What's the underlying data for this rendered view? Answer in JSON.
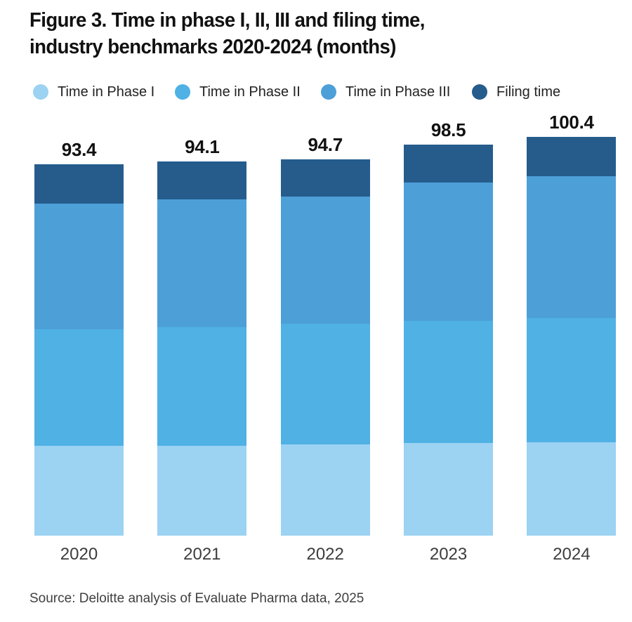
{
  "title": {
    "line1": "Figure 3. Time in phase I, II, III and filing time,",
    "line2": "industry benchmarks 2020-2024 (months)"
  },
  "legend": [
    {
      "label": "Time in Phase I",
      "color": "#9CD2F2"
    },
    {
      "label": "Time in Phase II",
      "color": "#4FB1E4"
    },
    {
      "label": "Time in Phase III",
      "color": "#4D9FD8"
    },
    {
      "label": "Filing time",
      "color": "#255C8C"
    }
  ],
  "source": "Source: Deloitte analysis of Evaluate Pharma data, 2025",
  "colors": {
    "phase1": "#9CD2F2",
    "phase2": "#4FB1E4",
    "phase3": "#4D9FD8",
    "filing": "#255C8C",
    "title_text": "#111111",
    "axis_text": "#3d3d3d",
    "background": "#ffffff"
  },
  "chart_data": {
    "type": "bar",
    "stacked": true,
    "title": "Figure 3. Time in phase I, II, III and filing time, industry benchmarks 2020-2024 (months)",
    "ylabel": "months",
    "grid": false,
    "legend_position": "top",
    "categories": [
      "2020",
      "2021",
      "2022",
      "2023",
      "2024"
    ],
    "series": [
      {
        "name": "Time in Phase I",
        "color": "#9CD2F2",
        "values": [
          22.7,
          22.7,
          22.9,
          23.3,
          23.5
        ]
      },
      {
        "name": "Time in Phase II",
        "color": "#4FB1E4",
        "values": [
          29.2,
          29.8,
          30.4,
          30.8,
          31.3
        ]
      },
      {
        "name": "Time in Phase III",
        "color": "#4D9FD8",
        "values": [
          31.7,
          32.1,
          32.0,
          34.7,
          35.6
        ]
      },
      {
        "name": "Filing time",
        "color": "#255C8C",
        "values": [
          9.8,
          9.5,
          9.4,
          9.7,
          10.0
        ]
      }
    ],
    "totals": [
      93.4,
      94.1,
      94.7,
      98.5,
      100.4
    ],
    "total_labels": [
      "93.4",
      "94.1",
      "94.7",
      "98.5",
      "100.4"
    ],
    "segments_estimated_from_pixels": true,
    "value_labels_shown": "totals_only"
  }
}
